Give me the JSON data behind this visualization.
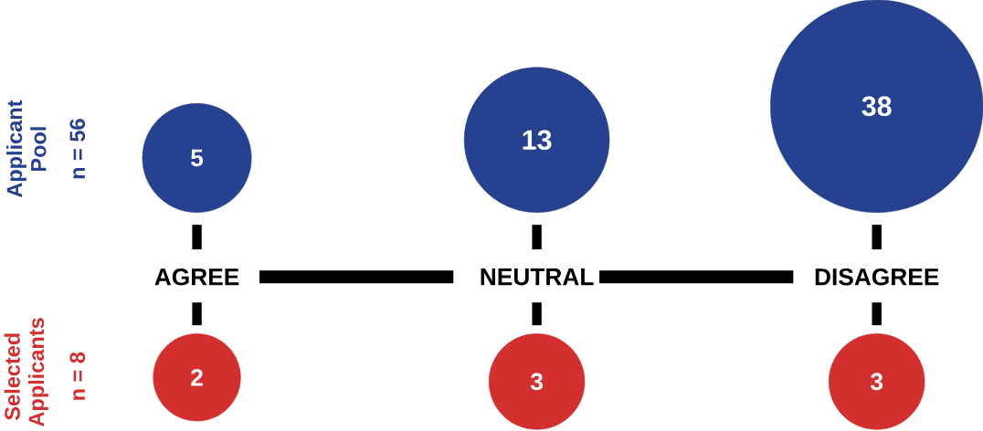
{
  "chart_data": {
    "type": "other",
    "categories": [
      "AGREE",
      "NEUTRAL",
      "DISAGREE"
    ],
    "series": [
      {
        "name": "Applicant Pool",
        "color": "#26418f",
        "values": [
          5,
          13,
          38
        ]
      },
      {
        "name": "Selected Applicants",
        "color": "#d32f2f",
        "values": [
          2,
          3,
          3
        ]
      }
    ],
    "annotations": [
      "n = 56",
      "n = 8"
    ],
    "data_labels": true
  }
}
